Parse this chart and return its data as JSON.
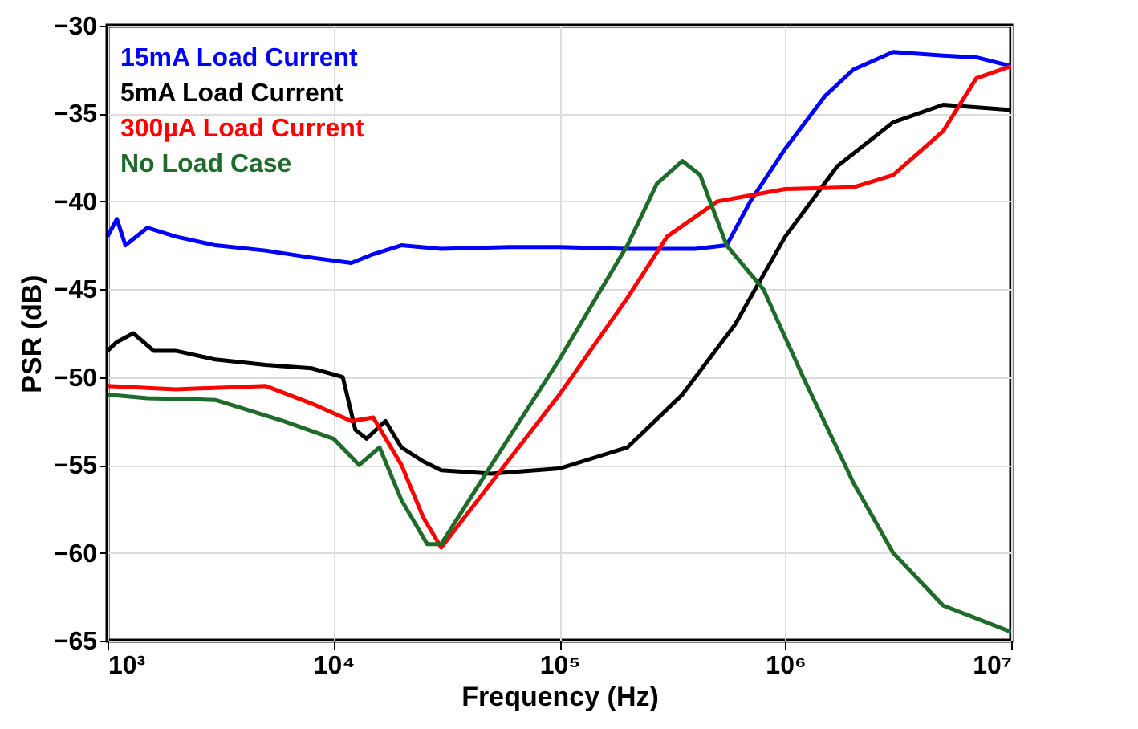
{
  "chart_data": {
    "type": "line",
    "xlabel": "Frequency (Hz)",
    "ylabel": "PSR (dB)",
    "log": "x",
    "grid": true,
    "legend": "top left",
    "xlim": [
      1000,
      10000000
    ],
    "xticks": [
      {
        "value": 1000,
        "label": "10³"
      },
      {
        "value": 10000,
        "label": "10⁴"
      },
      {
        "value": 100000,
        "label": "10⁵"
      },
      {
        "value": 1000000,
        "label": "10⁶"
      },
      {
        "value": 10000000,
        "label": "10⁷"
      }
    ],
    "ylim": [
      -65,
      -30
    ],
    "yticks": [
      -65,
      -60,
      -55,
      -50,
      -45,
      -40,
      -35,
      -30
    ],
    "series": [
      {
        "name": "15mA Load Current",
        "color": "#0000ff",
        "x": [
          1000,
          1100,
          1200,
          1500,
          2000,
          3000,
          5000,
          8000,
          12000,
          15000,
          20000,
          30000,
          60000,
          100000,
          200000,
          400000,
          550000,
          700000,
          1000000,
          1500000,
          2000000,
          3000000,
          5000000,
          7000000,
          10000000
        ],
        "values": [
          -42,
          -41,
          -42.5,
          -41.5,
          -42,
          -42.5,
          -42.8,
          -43.2,
          -43.5,
          -43,
          -42.5,
          -42.7,
          -42.6,
          -42.6,
          -42.7,
          -42.7,
          -42.5,
          -40,
          -37,
          -34,
          -32.5,
          -31.5,
          -31.7,
          -31.8,
          -32.3
        ]
      },
      {
        "name": "5mA Load Current",
        "color": "#000000",
        "x": [
          1000,
          1100,
          1300,
          1600,
          2000,
          3000,
          5000,
          8000,
          11000,
          12500,
          14000,
          17000,
          20000,
          25000,
          30000,
          50000,
          100000,
          200000,
          350000,
          600000,
          1000000,
          1700000,
          3000000,
          5000000,
          10000000
        ],
        "values": [
          -48.5,
          -48,
          -47.5,
          -48.5,
          -48.5,
          -49,
          -49.3,
          -49.5,
          -50,
          -53,
          -53.5,
          -52.5,
          -54,
          -54.8,
          -55.3,
          -55.5,
          -55.2,
          -54,
          -51,
          -47,
          -42,
          -38,
          -35.5,
          -34.5,
          -34.8
        ]
      },
      {
        "name": "300µA Load Current",
        "color": "#ff0000",
        "x": [
          1000,
          2000,
          5000,
          8000,
          12000,
          15000,
          20000,
          25000,
          30000,
          50000,
          100000,
          200000,
          300000,
          500000,
          1000000,
          2000000,
          3000000,
          5000000,
          7000000,
          10000000
        ],
        "values": [
          -50.5,
          -50.7,
          -50.5,
          -51.5,
          -52.5,
          -52.3,
          -55,
          -58,
          -59.7,
          -56,
          -51,
          -45.5,
          -42,
          -40,
          -39.3,
          -39.2,
          -38.5,
          -36,
          -33,
          -32.3
        ]
      },
      {
        "name": "No Load Case",
        "color": "#1e6b2a",
        "x": [
          1000,
          1500,
          3000,
          6000,
          10000,
          13000,
          16000,
          20000,
          26000,
          30000,
          50000,
          100000,
          200000,
          270000,
          350000,
          420000,
          550000,
          800000,
          1200000,
          2000000,
          3000000,
          5000000,
          10000000
        ],
        "values": [
          -51,
          -51.2,
          -51.3,
          -52.5,
          -53.5,
          -55,
          -54,
          -57,
          -59.5,
          -59.5,
          -55,
          -49,
          -42.5,
          -39,
          -37.7,
          -38.5,
          -42.5,
          -45,
          -50,
          -56,
          -60,
          -63,
          -64.5
        ]
      }
    ]
  }
}
